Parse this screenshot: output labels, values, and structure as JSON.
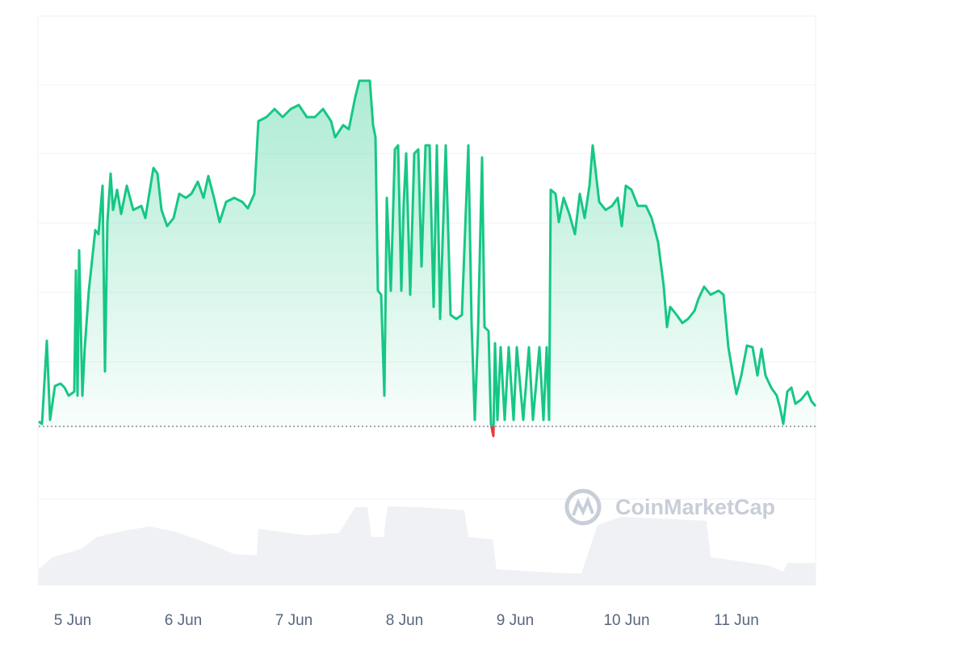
{
  "chart_data": {
    "type": "line",
    "watermark": "CoinMarketCap",
    "xlim": [
      48,
      1010
    ],
    "xticks": [
      {
        "value": 90,
        "label": "5 Jun"
      },
      {
        "value": 227,
        "label": "6 Jun"
      },
      {
        "value": 364,
        "label": "7 Jun"
      },
      {
        "value": 501,
        "label": "8 Jun"
      },
      {
        "value": 638,
        "label": "9 Jun"
      },
      {
        "value": 776,
        "label": "10 Jun"
      },
      {
        "value": 912,
        "label": "11 Jun"
      }
    ],
    "ylim": [
      0,
      600
    ],
    "y2lim": [
      0,
      105
    ],
    "baseline": 92,
    "grid": true,
    "up_color": "#16c784",
    "down_color": "#ea3943",
    "series": [
      {
        "color": "#16c784",
        "x": [
          48,
          52,
          58,
          62,
          68,
          75,
          80,
          85,
          92,
          94,
          96,
          98,
          102,
          105,
          110,
          118,
          122,
          127,
          130,
          133,
          137,
          140,
          145,
          150,
          157,
          165,
          175,
          180,
          190,
          195,
          200,
          207,
          215,
          222,
          230,
          237,
          245,
          252,
          258,
          265,
          272,
          280,
          290,
          300,
          307,
          315,
          320,
          330,
          340,
          350,
          360,
          370,
          380,
          390,
          400,
          410,
          415,
          425,
          432,
          440,
          445,
          452,
          458,
          462,
          465,
          468,
          472,
          476,
          479,
          484,
          489,
          493,
          497,
          500,
          503,
          508,
          513,
          518,
          522,
          527,
          532,
          537,
          541,
          545,
          552,
          558,
          565,
          572,
          580,
          584,
          588,
          592,
          597,
          600,
          605,
          608,
          611,
          613,
          616,
          620,
          625,
          630,
          636,
          640,
          648,
          655,
          660,
          668,
          673,
          677,
          680,
          682,
          688,
          692,
          698,
          705,
          712,
          718,
          724,
          730,
          734,
          738,
          742,
          750,
          758,
          765,
          770,
          775,
          782,
          790,
          800,
          807,
          815,
          822,
          826,
          830,
          838,
          845,
          852,
          860,
          865,
          872,
          880,
          890,
          896,
          902,
          907,
          912,
          918,
          925,
          932,
          938,
          943,
          948,
          955,
          962,
          966,
          970,
          975,
          980,
          985,
          992,
          1000,
          1005,
          1010
        ],
        "values": [
          98,
          95,
          198,
          100,
          142,
          145,
          140,
          130,
          135,
          285,
          130,
          310,
          130,
          190,
          260,
          335,
          330,
          390,
          160,
          345,
          405,
          360,
          385,
          355,
          390,
          360,
          365,
          350,
          412,
          405,
          360,
          340,
          350,
          380,
          375,
          380,
          395,
          375,
          402,
          375,
          345,
          370,
          375,
          370,
          362,
          380,
          470,
          475,
          485,
          475,
          485,
          490,
          475,
          475,
          485,
          470,
          450,
          465,
          460,
          500,
          520,
          520,
          520,
          465,
          450,
          260,
          255,
          130,
          375,
          260,
          435,
          440,
          260,
          370,
          430,
          255,
          430,
          435,
          290,
          440,
          440,
          240,
          440,
          225,
          440,
          230,
          225,
          230,
          440,
          220,
          100,
          210,
          425,
          215,
          210,
          95,
          80,
          195,
          100,
          190,
          100,
          190,
          100,
          190,
          100,
          190,
          100,
          190,
          100,
          190,
          100,
          385,
          380,
          345,
          375,
          355,
          330,
          380,
          350,
          390,
          440,
          405,
          370,
          360,
          365,
          375,
          340,
          390,
          385,
          365,
          365,
          350,
          320,
          265,
          215,
          240,
          230,
          220,
          225,
          235,
          250,
          265,
          255,
          260,
          255,
          190,
          160,
          132,
          155,
          192,
          190,
          155,
          188,
          155,
          140,
          130,
          115,
          95,
          135,
          140,
          120,
          125,
          135,
          123,
          117
        ]
      },
      {
        "axis": "y2",
        "color": "#eff1f5",
        "x": [
          48,
          65,
          100,
          120,
          150,
          185,
          215,
          250,
          290,
          318,
          320,
          380,
          420,
          440,
          455,
          460,
          475,
          480,
          520,
          575,
          580,
          610,
          615,
          700,
          720,
          740,
          770,
          875,
          880,
          950,
          970,
          975,
          1010
        ],
        "values": [
          20,
          35,
          45,
          60,
          67,
          73,
          67,
          55,
          39,
          37,
          70,
          62,
          65,
          97,
          97,
          60,
          60,
          98,
          97,
          93,
          60,
          57,
          20,
          15,
          15,
          75,
          85,
          80,
          35,
          25,
          17,
          28,
          28
        ]
      }
    ]
  }
}
